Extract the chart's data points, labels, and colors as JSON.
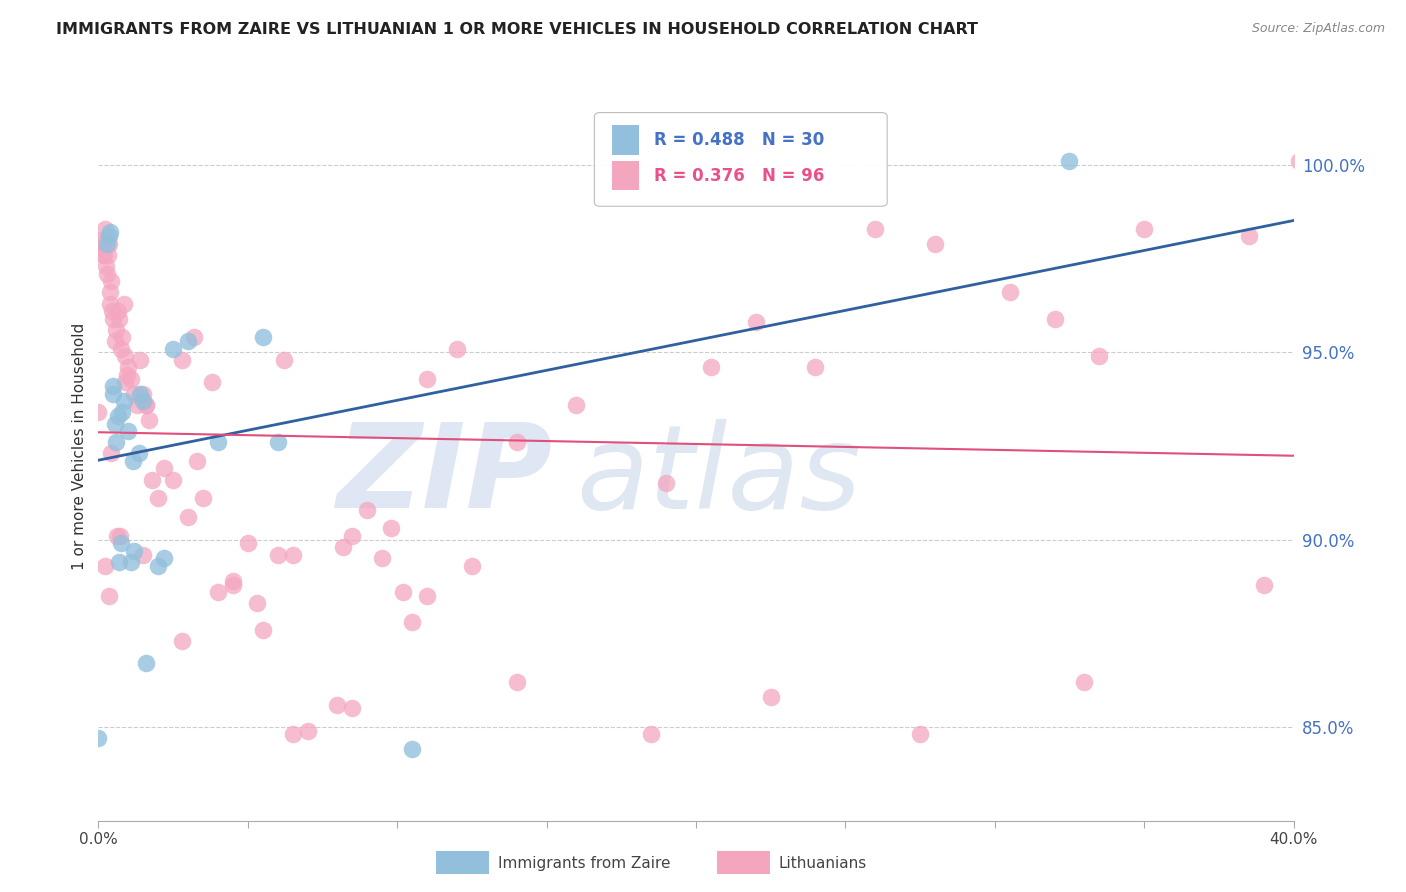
{
  "title": "IMMIGRANTS FROM ZAIRE VS LITHUANIAN 1 OR MORE VEHICLES IN HOUSEHOLD CORRELATION CHART",
  "source": "Source: ZipAtlas.com",
  "ylabel": "1 or more Vehicles in Household",
  "y_tick_labels": [
    "85.0%",
    "90.0%",
    "95.0%",
    "100.0%"
  ],
  "y_tick_values": [
    85.0,
    90.0,
    95.0,
    100.0
  ],
  "label_blue": "Immigrants from Zaire",
  "label_pink": "Lithuanians",
  "blue_dot_color": "#92c0dc",
  "pink_dot_color": "#f4a6bf",
  "blue_line_color": "#3060a0",
  "pink_line_color": "#e0507a",
  "legend_blue_color": "#4472c4",
  "legend_pink_color": "#e8528c",
  "watermark_zip_color": "#c8d8ec",
  "watermark_atlas_color": "#b8cce4",
  "xlim": [
    0.0,
    40.0
  ],
  "ylim": [
    82.5,
    102.5
  ],
  "figsize": [
    14.06,
    8.92
  ],
  "dpi": 100,
  "blue_x": [
    0.0,
    0.3,
    0.35,
    0.4,
    0.5,
    0.5,
    0.55,
    0.6,
    0.65,
    0.7,
    0.75,
    0.8,
    0.85,
    1.0,
    1.1,
    1.15,
    1.2,
    1.35,
    1.4,
    1.5,
    1.6,
    2.0,
    2.2,
    2.5,
    3.0,
    4.0,
    5.5,
    6.0,
    10.5,
    32.5
  ],
  "blue_y": [
    84.7,
    97.9,
    98.1,
    98.2,
    93.9,
    94.1,
    93.1,
    92.6,
    93.3,
    89.4,
    89.9,
    93.4,
    93.7,
    92.9,
    89.4,
    92.1,
    89.7,
    92.3,
    93.9,
    93.7,
    86.7,
    89.3,
    89.5,
    95.1,
    95.3,
    92.6,
    95.4,
    92.6,
    84.4,
    100.1
  ],
  "pink_x": [
    0.0,
    0.05,
    0.1,
    0.12,
    0.15,
    0.2,
    0.22,
    0.25,
    0.3,
    0.32,
    0.35,
    0.38,
    0.4,
    0.42,
    0.45,
    0.5,
    0.55,
    0.6,
    0.65,
    0.7,
    0.75,
    0.8,
    0.85,
    0.9,
    0.95,
    1.0,
    1.1,
    1.2,
    1.3,
    1.5,
    1.6,
    1.8,
    2.0,
    2.2,
    2.5,
    3.0,
    3.5,
    4.0,
    4.5,
    5.0,
    5.5,
    6.0,
    6.5,
    7.0,
    8.0,
    8.5,
    9.0,
    9.5,
    9.8,
    10.5,
    11.0,
    12.0,
    14.0,
    16.0,
    19.0,
    20.5,
    22.0,
    24.0,
    26.0,
    28.0,
    30.5,
    32.0,
    33.5,
    35.0,
    38.5,
    40.2,
    3.2,
    2.8,
    1.7,
    0.9,
    1.4,
    3.8,
    6.2,
    8.2,
    10.2,
    12.5,
    5.3,
    3.3,
    1.6,
    0.72,
    0.42,
    0.22,
    0.35,
    0.62,
    1.5,
    2.8,
    4.5,
    6.5,
    8.5,
    11.0,
    14.0,
    18.5,
    22.5,
    27.5,
    33.0,
    39.0
  ],
  "pink_y": [
    93.4,
    97.8,
    98.0,
    97.9,
    97.6,
    97.6,
    98.3,
    97.3,
    97.1,
    97.6,
    97.9,
    96.6,
    96.3,
    96.9,
    96.1,
    95.9,
    95.3,
    95.6,
    96.1,
    95.9,
    95.1,
    95.4,
    96.3,
    94.9,
    94.4,
    94.6,
    94.3,
    93.9,
    93.6,
    93.9,
    93.6,
    91.6,
    91.1,
    91.9,
    91.6,
    90.6,
    91.1,
    88.6,
    88.9,
    89.9,
    87.6,
    89.6,
    89.6,
    84.9,
    85.6,
    90.1,
    90.8,
    89.5,
    90.3,
    87.8,
    94.3,
    95.1,
    92.6,
    93.6,
    91.5,
    94.6,
    95.8,
    94.6,
    98.3,
    97.9,
    96.6,
    95.9,
    94.9,
    98.3,
    98.1,
    100.1,
    95.4,
    94.8,
    93.2,
    94.2,
    94.8,
    94.2,
    94.8,
    89.8,
    88.6,
    89.3,
    88.3,
    92.1,
    93.6,
    90.1,
    92.3,
    89.3,
    88.5,
    90.1,
    89.6,
    87.3,
    88.8,
    84.8,
    85.5,
    88.5,
    86.2,
    84.8,
    85.8,
    84.8,
    86.2,
    88.8
  ]
}
